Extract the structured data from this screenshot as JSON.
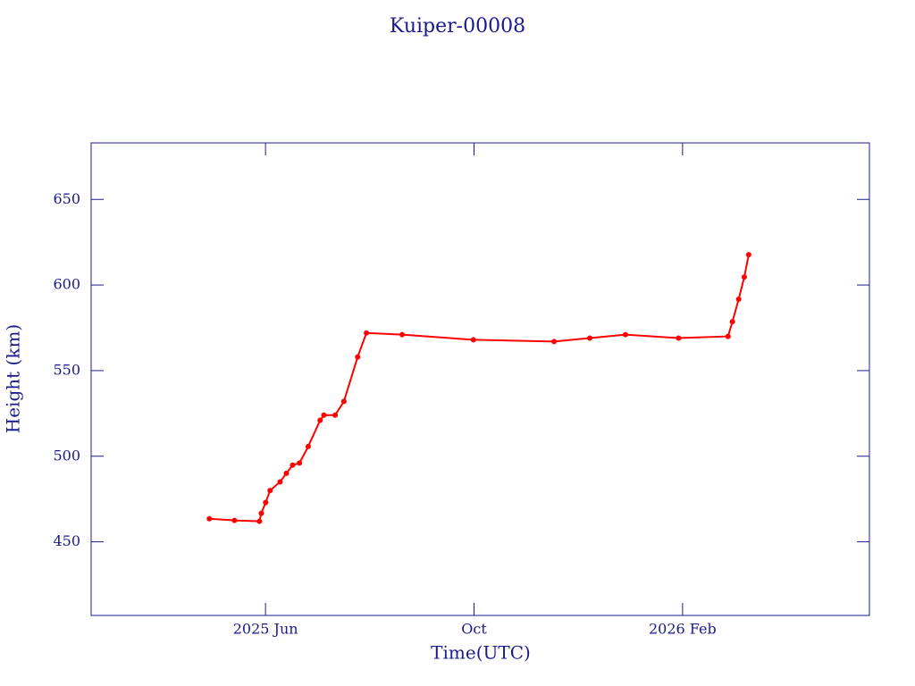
{
  "chart_data": {
    "type": "line",
    "title": "Kuiper-00008",
    "x_label": "Time(UTC)",
    "y_label": "Height (km)",
    "x": [
      2025.327,
      2025.367,
      2025.407,
      2025.41,
      2025.417,
      2025.424,
      2025.44,
      2025.45,
      2025.46,
      2025.471,
      2025.485,
      2025.504,
      2025.51,
      2025.528,
      2025.542,
      2025.564,
      2025.578,
      2025.635,
      2025.749,
      2025.878,
      2025.935,
      2025.992,
      2026.077,
      2026.156,
      2026.163,
      2026.173,
      2026.182,
      2026.189
    ],
    "series": [
      {
        "color": "#ff0000",
        "values": [
          463.5,
          462.5,
          462,
          466.7,
          473,
          480,
          485,
          490,
          494.8,
          496,
          505.7,
          521,
          524,
          524,
          532,
          558,
          572,
          571,
          568,
          567,
          569,
          571,
          569,
          570,
          578.6,
          591.7,
          604.7,
          617.7
        ]
      }
    ],
    "xlim": [
      2025.138,
      2026.382
    ],
    "xticks": [
      {
        "value": 2025.4167,
        "label": "2025 Jun"
      },
      {
        "value": 2025.75,
        "label": "Oct"
      },
      {
        "value": 2026.0833,
        "label": "2026 Feb"
      }
    ],
    "ylim": [
      407,
      683
    ],
    "yticks": [
      450,
      500,
      550,
      600,
      650
    ],
    "axis_color": "#1a1a8c"
  }
}
